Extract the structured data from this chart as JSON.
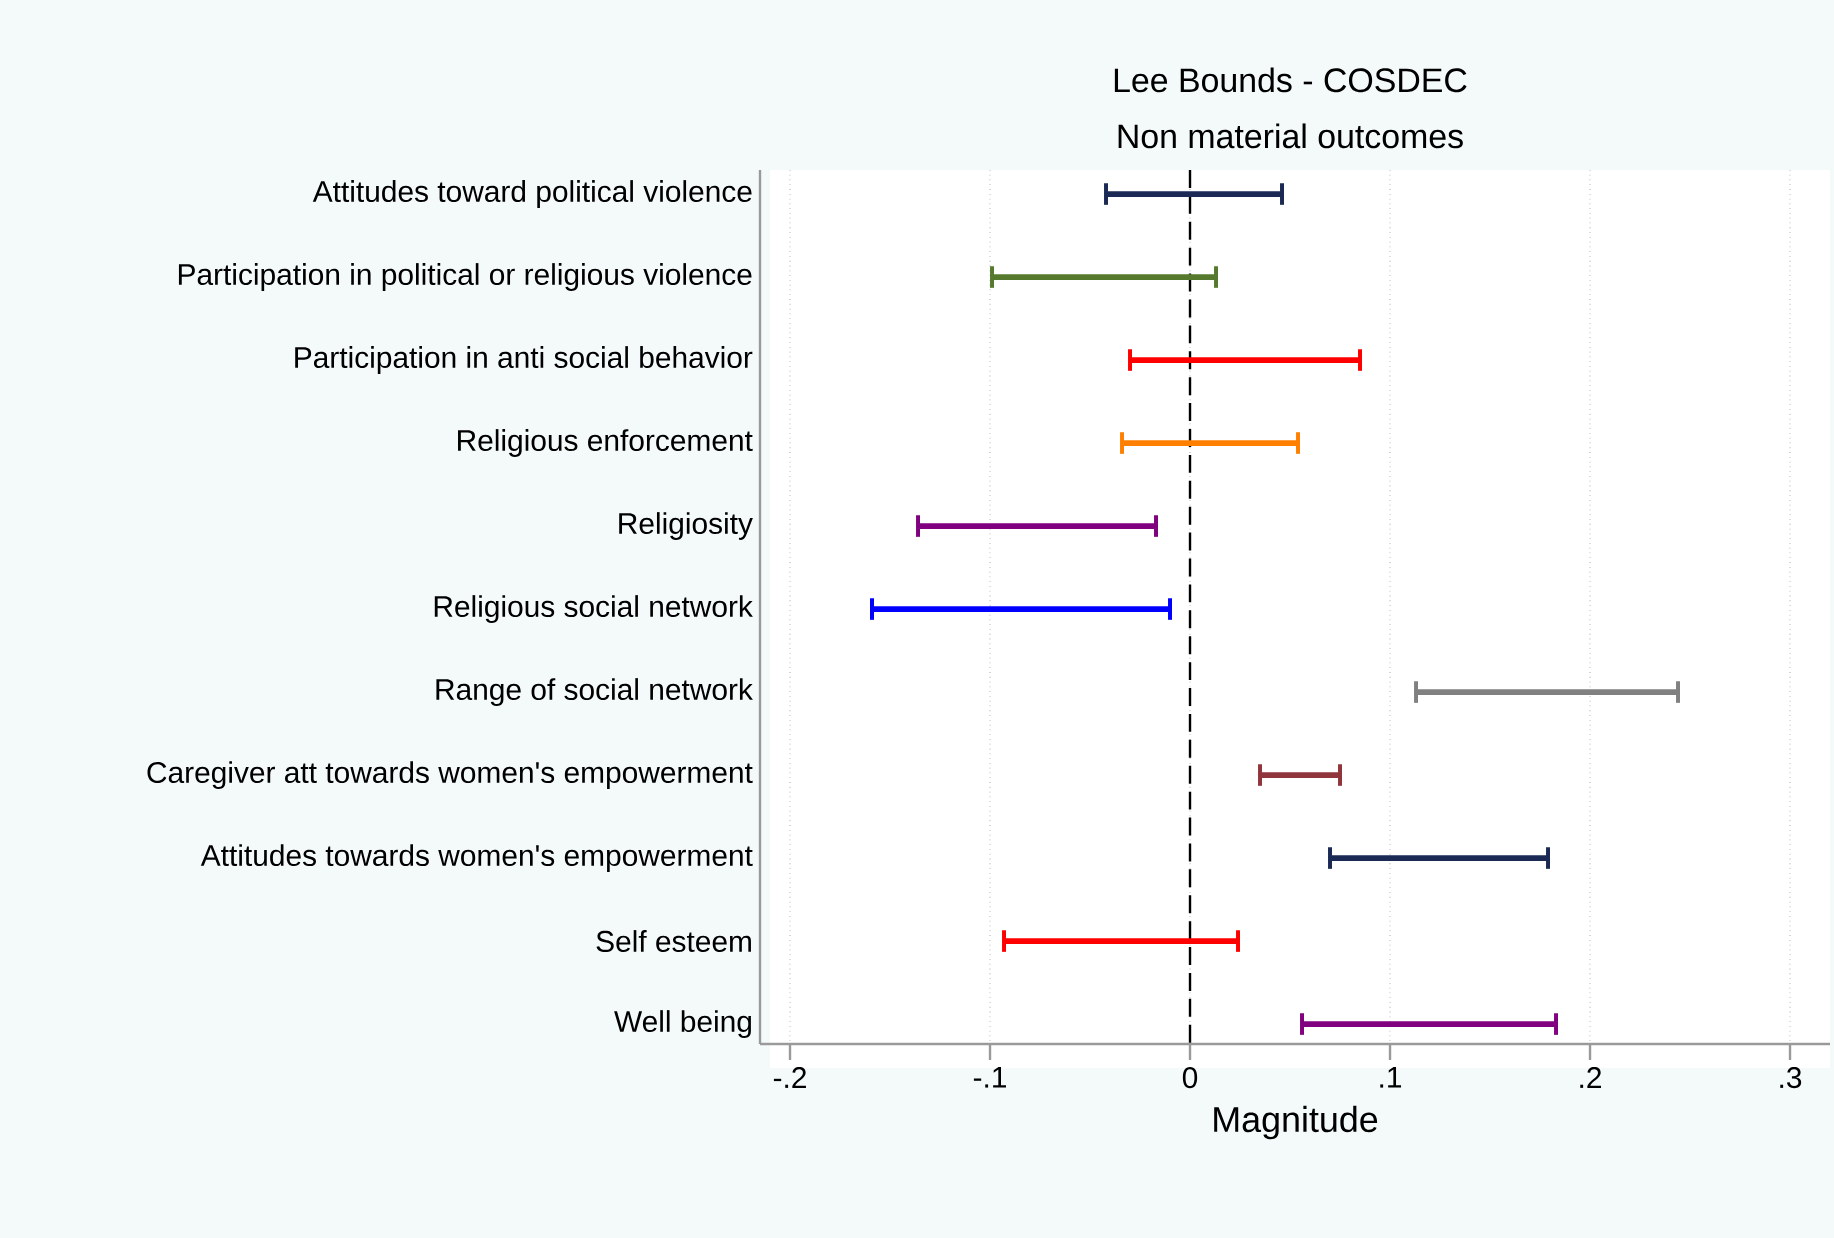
{
  "chart_data": {
    "type": "bar",
    "orientation": "horizontal",
    "title": "Lee Bounds - COSDEC",
    "subtitle": "Non material outcomes",
    "xlabel": "Magnitude",
    "categories": [
      "Attitudes toward political violence",
      "Participation in political or religious violence",
      "Participation in anti social behavior",
      "Religious enforcement",
      "Religiosity",
      "Religious social network",
      "Range of social network",
      "Caregiver att towards women's empowerment",
      "Attitudes towards women's empowerment",
      "Self esteem",
      "Well being"
    ],
    "base": [
      -0.042,
      -0.099,
      -0.03,
      -0.034,
      -0.136,
      -0.159,
      0.113,
      0.035,
      0.07,
      -0.093,
      0.056
    ],
    "values": [
      0.088,
      0.112,
      0.115,
      0.088,
      0.119,
      0.149,
      0.131,
      0.04,
      0.109,
      0.117,
      0.127
    ],
    "colors": [
      "#1a2a55",
      "#557a2d",
      "#ff0000",
      "#ff7f00",
      "#800080",
      "#0000ff",
      "#808080",
      "#90353b",
      "#1a2a55",
      "#ff0000",
      "#800080"
    ],
    "xlim": [
      -0.215,
      0.32
    ],
    "xticks": [
      {
        "value": -0.2,
        "label": "-.2"
      },
      {
        "value": -0.1,
        "label": "-.1"
      },
      {
        "value": 0,
        "label": "0"
      },
      {
        "value": 0.1,
        "label": ".1"
      },
      {
        "value": 0.2,
        "label": ".2"
      },
      {
        "value": 0.3,
        "label": ".3"
      }
    ],
    "ref_lines": [
      {
        "axis": "x",
        "value": 0,
        "color": "#000000",
        "line_style": "dashed"
      }
    ],
    "grid": "x"
  }
}
